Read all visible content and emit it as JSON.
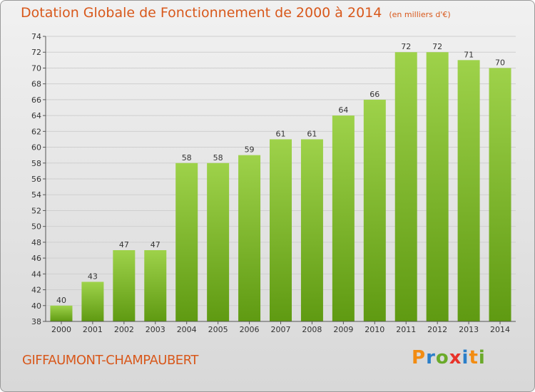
{
  "title": "Dotation Globale de Fonctionnement de 2000 à 2014",
  "unit": "(en milliers d'€)",
  "commune": "GIFFAUMONT-CHAMPAUBERT",
  "logo": {
    "letters": [
      "P",
      "r",
      "o",
      "x",
      "i",
      "t",
      "i"
    ],
    "colors": [
      "#f28c12",
      "#2b7fc9",
      "#6aaa2a",
      "#e8332a",
      "#2b7fc9",
      "#f28c12",
      "#6aaa2a"
    ]
  },
  "colors": {
    "bar_top": "#9ed24a",
    "bar_bottom": "#5f9a12",
    "title": "#d8581b"
  },
  "chart_data": {
    "type": "bar",
    "title": "Dotation Globale de Fonctionnement de 2000 à 2014",
    "categories": [
      "2000",
      "2001",
      "2002",
      "2003",
      "2004",
      "2005",
      "2006",
      "2007",
      "2008",
      "2009",
      "2010",
      "2011",
      "2012",
      "2013",
      "2014"
    ],
    "values": [
      40,
      43,
      47,
      47,
      58,
      58,
      59,
      61,
      61,
      64,
      66,
      72,
      72,
      71,
      70
    ],
    "ylim": [
      38,
      74
    ],
    "yticks": [
      38,
      40,
      42,
      44,
      46,
      48,
      50,
      52,
      54,
      56,
      58,
      60,
      62,
      64,
      66,
      68,
      70,
      72,
      74
    ],
    "grid": true,
    "data_labels": true
  }
}
